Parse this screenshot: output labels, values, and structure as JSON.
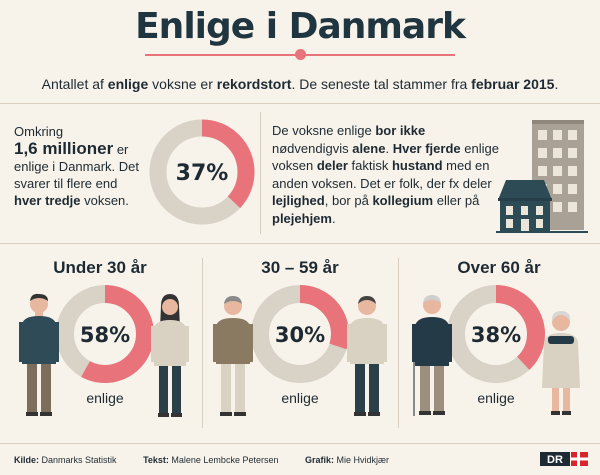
{
  "title": "Enlige i Danmark",
  "intro": {
    "t1": "Antallet af ",
    "b1": "enlige",
    "t2": " voksne er ",
    "b2": "rekordstort",
    "t3": ". De seneste tal stammer fra ",
    "b3": "februar 2015",
    "t4": "."
  },
  "left": {
    "l1": "Omkring",
    "l2": "1,6 millioner",
    "l3": " er enlige i Danmark. Det svarer til flere end ",
    "l4": "hver tredje",
    "l5": " voksen."
  },
  "main_donut": {
    "label": "37%",
    "value": 37
  },
  "right": {
    "r1": "De voksne enlige ",
    "r2": "bor ikke",
    "r3": " nødvendigvis ",
    "r4": "alene",
    "r5": ". ",
    "r6": "Hver fjerde",
    "r7": " enlige voksen ",
    "r8": "deler",
    "r9": " faktisk ",
    "r10": "hustand",
    "r11": " med en anden voksen. Det er folk, der fx deler ",
    "r12": "lejlighed",
    "r13": ", bor på ",
    "r14": "kollegium",
    "r15": " eller på ",
    "r16": "plejehjem",
    "r17": "."
  },
  "groups": [
    {
      "title": "Under 30 år",
      "label": "58%",
      "value": 58,
      "sub": "enlige"
    },
    {
      "title": "30 – 59 år",
      "label": "30%",
      "value": 30,
      "sub": "enlige"
    },
    {
      "title": "Over 60 år",
      "label": "38%",
      "value": 38,
      "sub": "enlige"
    }
  ],
  "footer": {
    "k_label": "Kilde:",
    "k_val": " Danmarks Statistik",
    "t_label": "Tekst:",
    "t_val": " Malene Lembcke Petersen",
    "g_label": "Grafik:",
    "g_val": " Mie Hvidkjær"
  },
  "logo": "DR",
  "colors": {
    "accent": "#e9737a",
    "track": "#d9d2c6",
    "ink": "#1e2a33",
    "background": "#f7f3ea"
  }
}
